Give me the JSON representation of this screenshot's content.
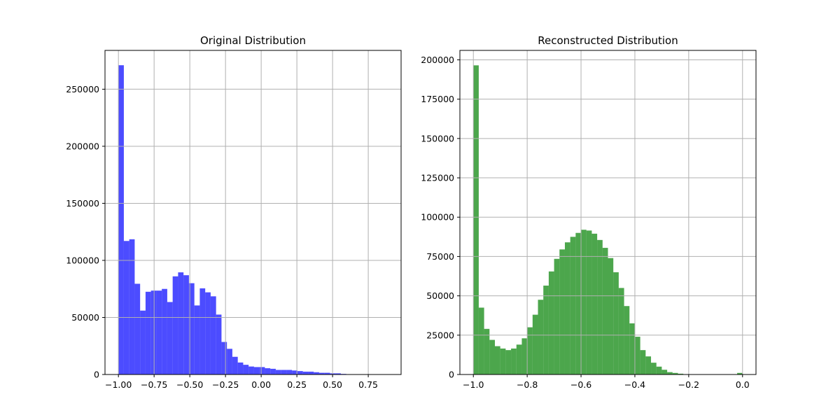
{
  "chart_data": [
    {
      "type": "bar",
      "title": "Original Distribution",
      "xlabel": "",
      "ylabel": "",
      "xlim": [
        -1.094,
        0.98
      ],
      "ylim": [
        0,
        284000
      ],
      "grid": true,
      "bar_color": "#0000ff",
      "bar_opacity": 0.7,
      "bin_start": -1.0,
      "bin_width": 0.038,
      "values": [
        271000,
        117000,
        118500,
        79500,
        56000,
        72500,
        73500,
        73500,
        75000,
        63500,
        86000,
        89500,
        87000,
        80000,
        60500,
        75500,
        72000,
        68500,
        52500,
        28500,
        22500,
        15500,
        10500,
        8500,
        7000,
        6500,
        6500,
        5500,
        5000,
        4000,
        4000,
        4000,
        3500,
        3000,
        2500,
        2500,
        2000,
        1500,
        1500,
        1000,
        1000,
        500,
        300,
        200,
        150,
        100,
        50,
        30,
        20,
        10
      ],
      "xticks": [
        -1.0,
        -0.75,
        -0.5,
        -0.25,
        0.0,
        0.25,
        0.5,
        0.75
      ],
      "xtick_labels": [
        "−1.00",
        "−0.75",
        "−0.50",
        "−0.25",
        "0.00",
        "0.25",
        "0.50",
        "0.75"
      ],
      "yticks": [
        0,
        50000,
        100000,
        150000,
        200000,
        250000
      ],
      "ytick_labels": [
        "0",
        "50000",
        "100000",
        "150000",
        "200000",
        "250000"
      ]
    },
    {
      "type": "bar",
      "title": "Reconstructed Distribution",
      "xlabel": "",
      "ylabel": "",
      "xlim": [
        -1.05,
        0.05
      ],
      "ylim": [
        0,
        206000
      ],
      "grid": true,
      "bar_color": "#008000",
      "bar_opacity": 0.7,
      "bin_start": -1.0,
      "bin_width": 0.02,
      "values": [
        196500,
        42500,
        29000,
        22000,
        18000,
        16500,
        15500,
        16500,
        19000,
        23000,
        30000,
        38000,
        47500,
        56500,
        65500,
        73500,
        79500,
        84000,
        87500,
        90000,
        92000,
        91500,
        89500,
        85500,
        80500,
        74000,
        65000,
        55000,
        43500,
        32500,
        24000,
        15500,
        11500,
        7500,
        5000,
        3000,
        1500,
        1000,
        500,
        200,
        100,
        50,
        30,
        20,
        10,
        5,
        0,
        0,
        0,
        1000
      ],
      "xticks": [
        -1.0,
        -0.8,
        -0.6,
        -0.4,
        -0.2,
        0.0
      ],
      "xtick_labels": [
        "−1.0",
        "−0.8",
        "−0.6",
        "−0.4",
        "−0.2",
        "0.0"
      ],
      "yticks": [
        0,
        25000,
        50000,
        75000,
        100000,
        125000,
        150000,
        175000,
        200000
      ],
      "ytick_labels": [
        "0",
        "25000",
        "50000",
        "75000",
        "100000",
        "125000",
        "150000",
        "175000",
        "200000"
      ]
    }
  ]
}
